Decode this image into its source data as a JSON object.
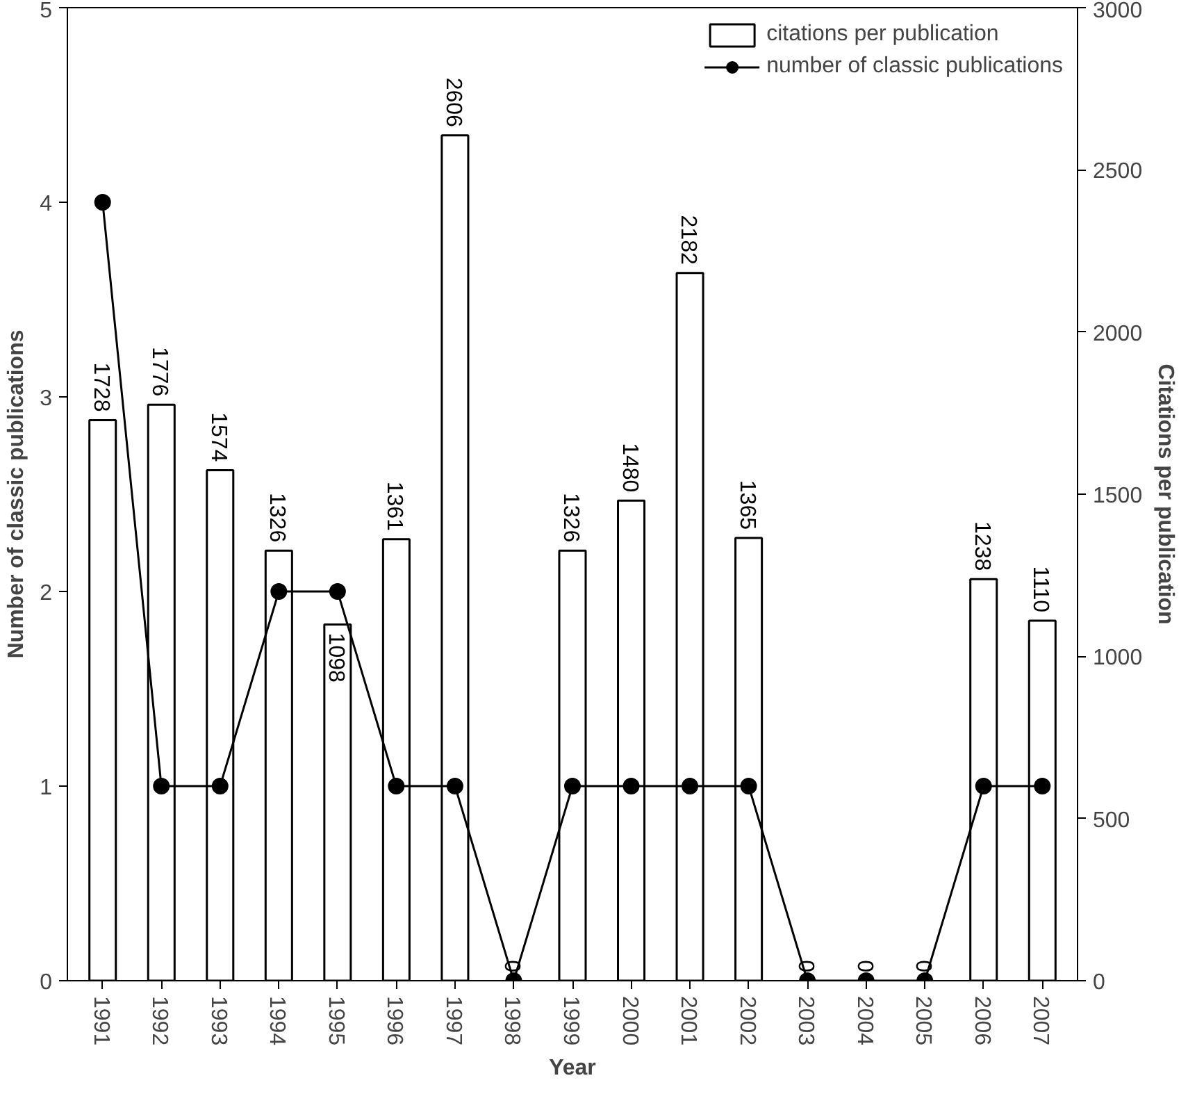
{
  "chart_data": {
    "type": "bar",
    "xlabel": "Year",
    "ylabel": "Number of classic publications",
    "y2label": "Citations per publication",
    "categories": [
      "1991",
      "1992",
      "1993",
      "1994",
      "1995",
      "1996",
      "1997",
      "1998",
      "1999",
      "2000",
      "2001",
      "2002",
      "2003",
      "2004",
      "2005",
      "2006",
      "2007"
    ],
    "series": [
      {
        "name": "citations per publication",
        "type": "bar",
        "axis": "y2",
        "color": "#ffffff",
        "values": [
          1728,
          1776,
          1574,
          1326,
          1098,
          1361,
          2606,
          0,
          1326,
          1480,
          2182,
          1365,
          0,
          0,
          0,
          1238,
          1110
        ],
        "value_labels": [
          "1728",
          "1776",
          "1574",
          "1326",
          "1098",
          "1361",
          "2606",
          "0",
          "1326",
          "1480",
          "2182",
          "1365",
          "0",
          "0",
          "0",
          "1238",
          "1110"
        ]
      },
      {
        "name": "number of classic publications",
        "type": "line",
        "color": "#000000",
        "marker": "circle",
        "values": [
          4,
          1,
          1,
          2,
          2,
          1,
          1,
          0,
          1,
          1,
          1,
          1,
          0,
          0,
          0,
          1,
          1
        ]
      }
    ],
    "ylim": [
      0,
      5
    ],
    "yticks": [
      0,
      1,
      2,
      3,
      4,
      5
    ],
    "y2lim": [
      0,
      3000
    ],
    "y2ticks": [
      0,
      500,
      1000,
      1500,
      2000,
      2500,
      3000
    ],
    "grid": false,
    "legend": "top right"
  }
}
